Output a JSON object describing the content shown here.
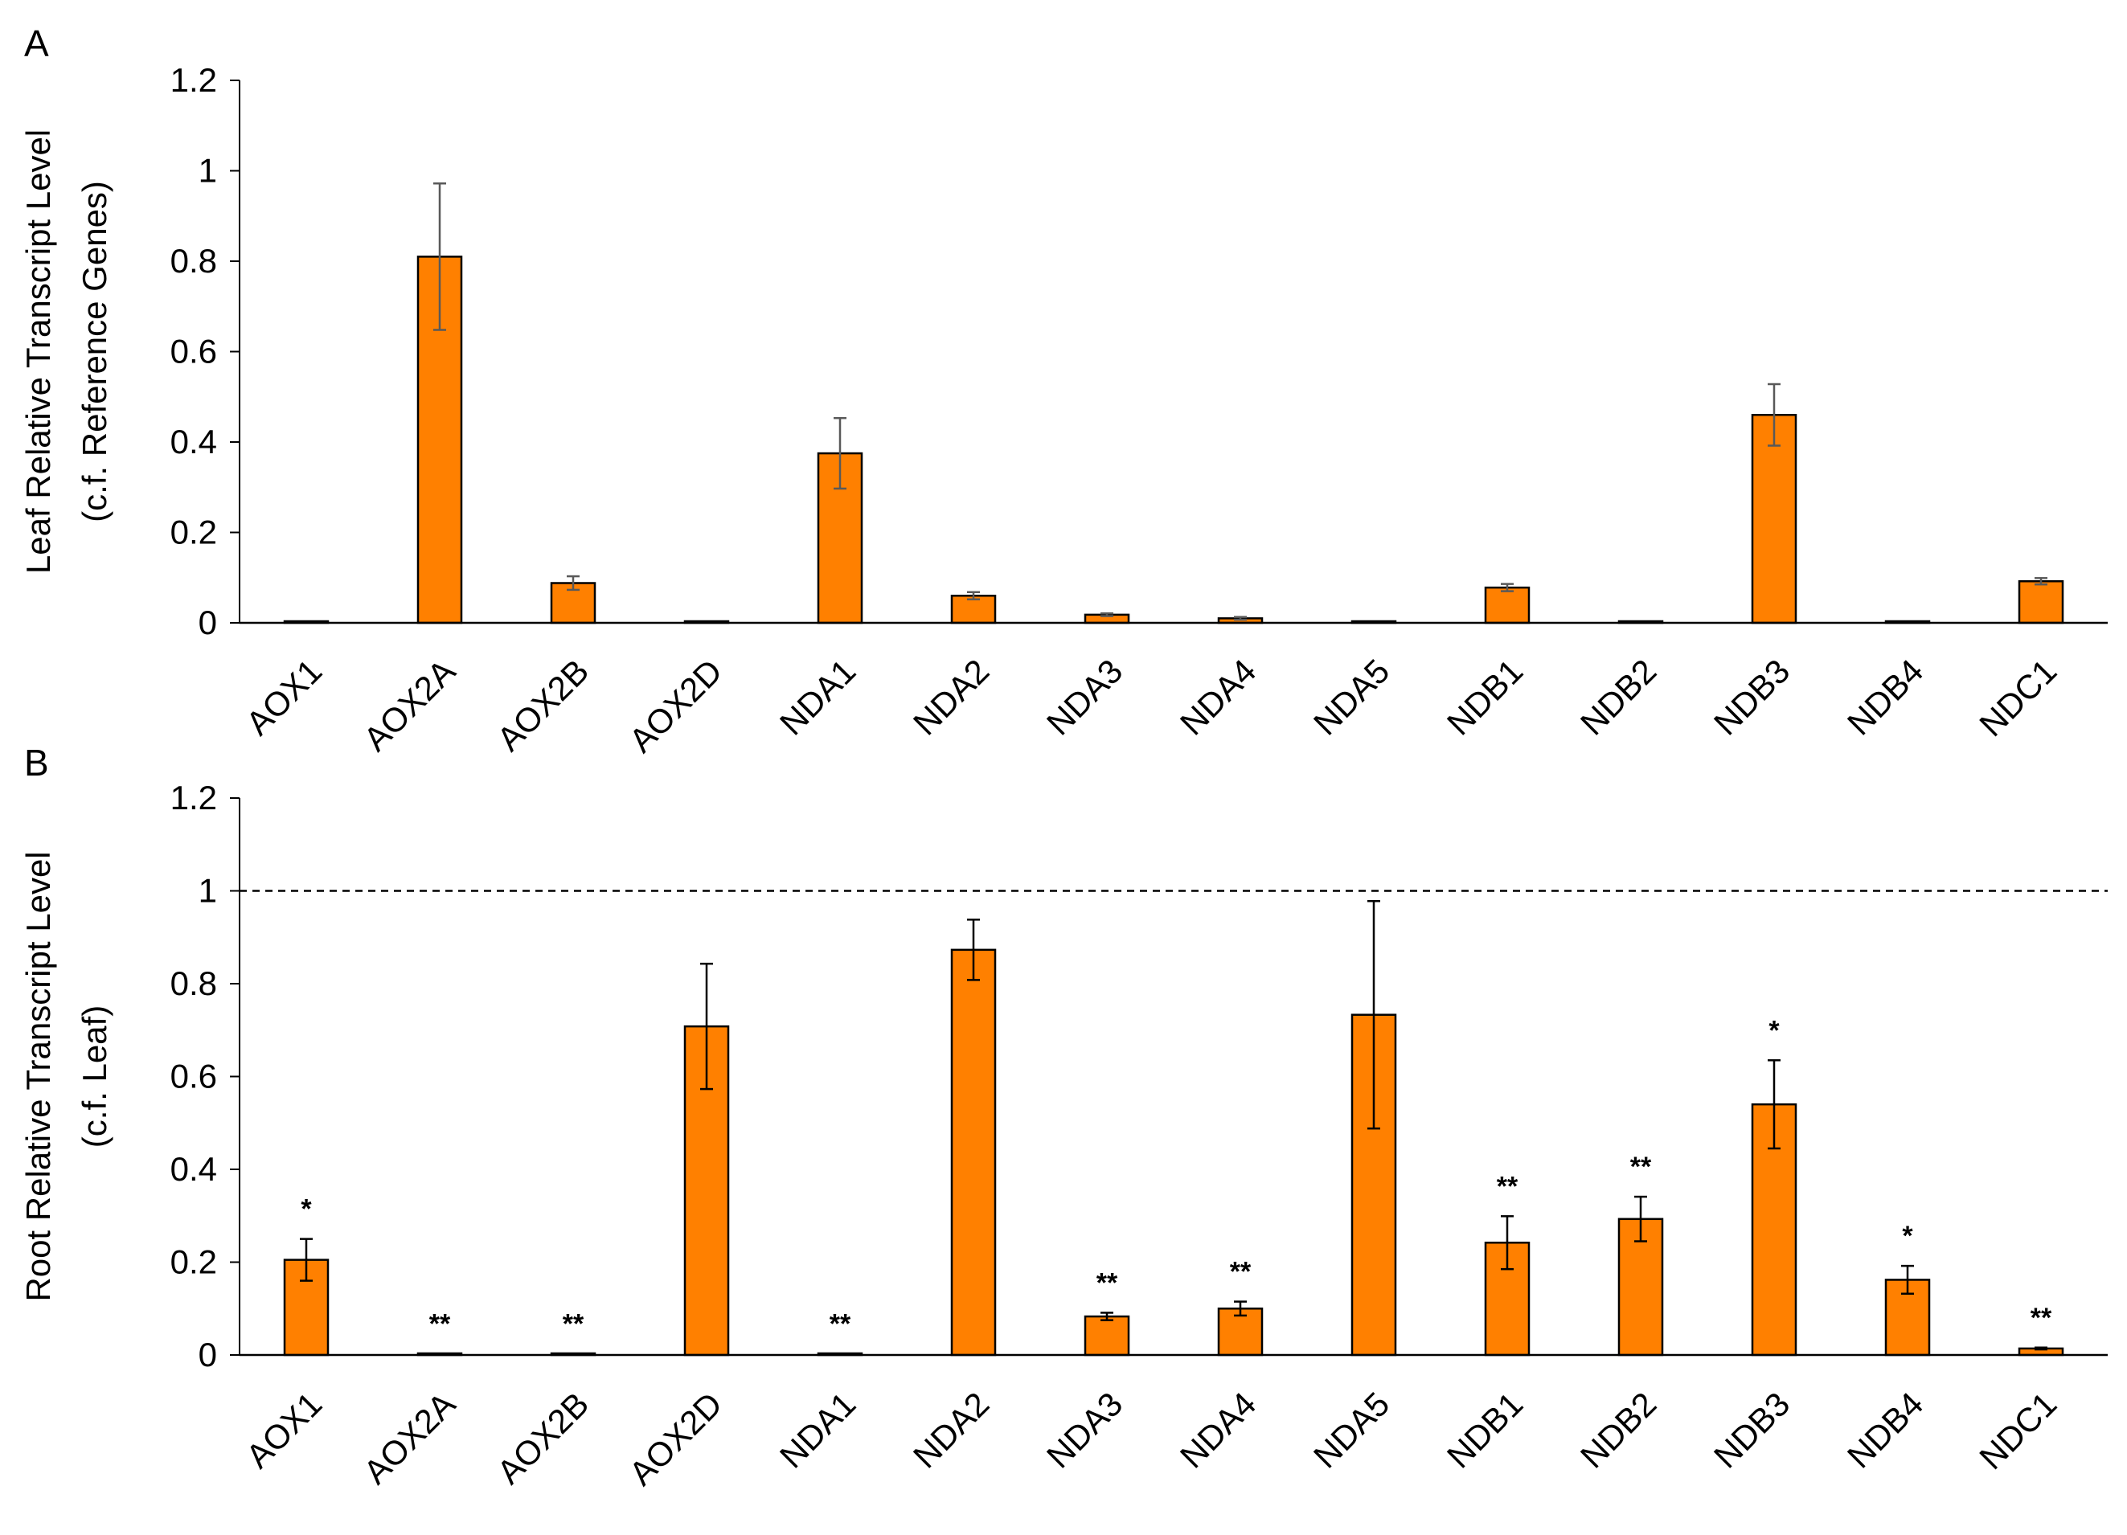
{
  "figure": {
    "colors": {
      "bar": "#ff8000",
      "bar_edge": "#000000",
      "axis": "#000000",
      "reference_line": "#000000"
    }
  },
  "chart_data": [
    {
      "type": "bar",
      "panel": "A",
      "title": "",
      "xlabel": "",
      "ylabel": "Leaf Relative Transcript Level",
      "ylabel2": "(c.f. Reference Genes)",
      "ylim": [
        0,
        1.2
      ],
      "yticks": [
        "0",
        "0.2",
        "0.4",
        "0.6",
        "0.8",
        "1",
        "1.2"
      ],
      "categories": [
        "AOX1",
        "AOX2A",
        "AOX2B",
        "AOX2D",
        "NDA1",
        "NDA2",
        "NDA3",
        "NDA4",
        "NDA5",
        "NDB1",
        "NDB2",
        "NDB3",
        "NDB4",
        "NDC1"
      ],
      "values": [
        0.002,
        0.81,
        0.088,
        0.002,
        0.375,
        0.06,
        0.018,
        0.01,
        0.002,
        0.078,
        0.002,
        0.46,
        0.002,
        0.092
      ],
      "errors": [
        0,
        0.162,
        0.015,
        0,
        0.078,
        0.008,
        0.003,
        0.003,
        0,
        0.008,
        0,
        0.068,
        0,
        0.007
      ],
      "error_color": "#595959",
      "significance": [
        "",
        "",
        "",
        "",
        "",
        "",
        "",
        "",
        "",
        "",
        "",
        "",
        "",
        ""
      ],
      "reference_line": null,
      "grid": false,
      "legend": "none"
    },
    {
      "type": "bar",
      "panel": "B",
      "title": "",
      "xlabel": "",
      "ylabel": "Root Relative Transcript Level",
      "ylabel2": "(c.f. Leaf)",
      "ylim": [
        0,
        1.2
      ],
      "yticks": [
        "0",
        "0.2",
        "0.4",
        "0.6",
        "0.8",
        "1",
        "1.2"
      ],
      "categories": [
        "AOX1",
        "AOX2A",
        "AOX2B",
        "AOX2D",
        "NDA1",
        "NDA2",
        "NDA3",
        "NDA4",
        "NDA5",
        "NDB1",
        "NDB2",
        "NDB3",
        "NDB4",
        "NDC1"
      ],
      "values": [
        0.205,
        0.003,
        0.003,
        0.708,
        0.003,
        0.873,
        0.083,
        0.1,
        0.733,
        0.242,
        0.293,
        0.54,
        0.162,
        0.014
      ],
      "errors": [
        0.045,
        0,
        0,
        0.135,
        0,
        0.065,
        0.008,
        0.015,
        0.245,
        0.057,
        0.048,
        0.095,
        0.03,
        0.002
      ],
      "error_color": "#000000",
      "significance": [
        "*",
        "**",
        "**",
        "",
        "**",
        "",
        "**",
        "**",
        "",
        "**",
        "**",
        "*",
        "*",
        "**"
      ],
      "reference_line": 1,
      "grid": false,
      "legend": "none"
    }
  ]
}
